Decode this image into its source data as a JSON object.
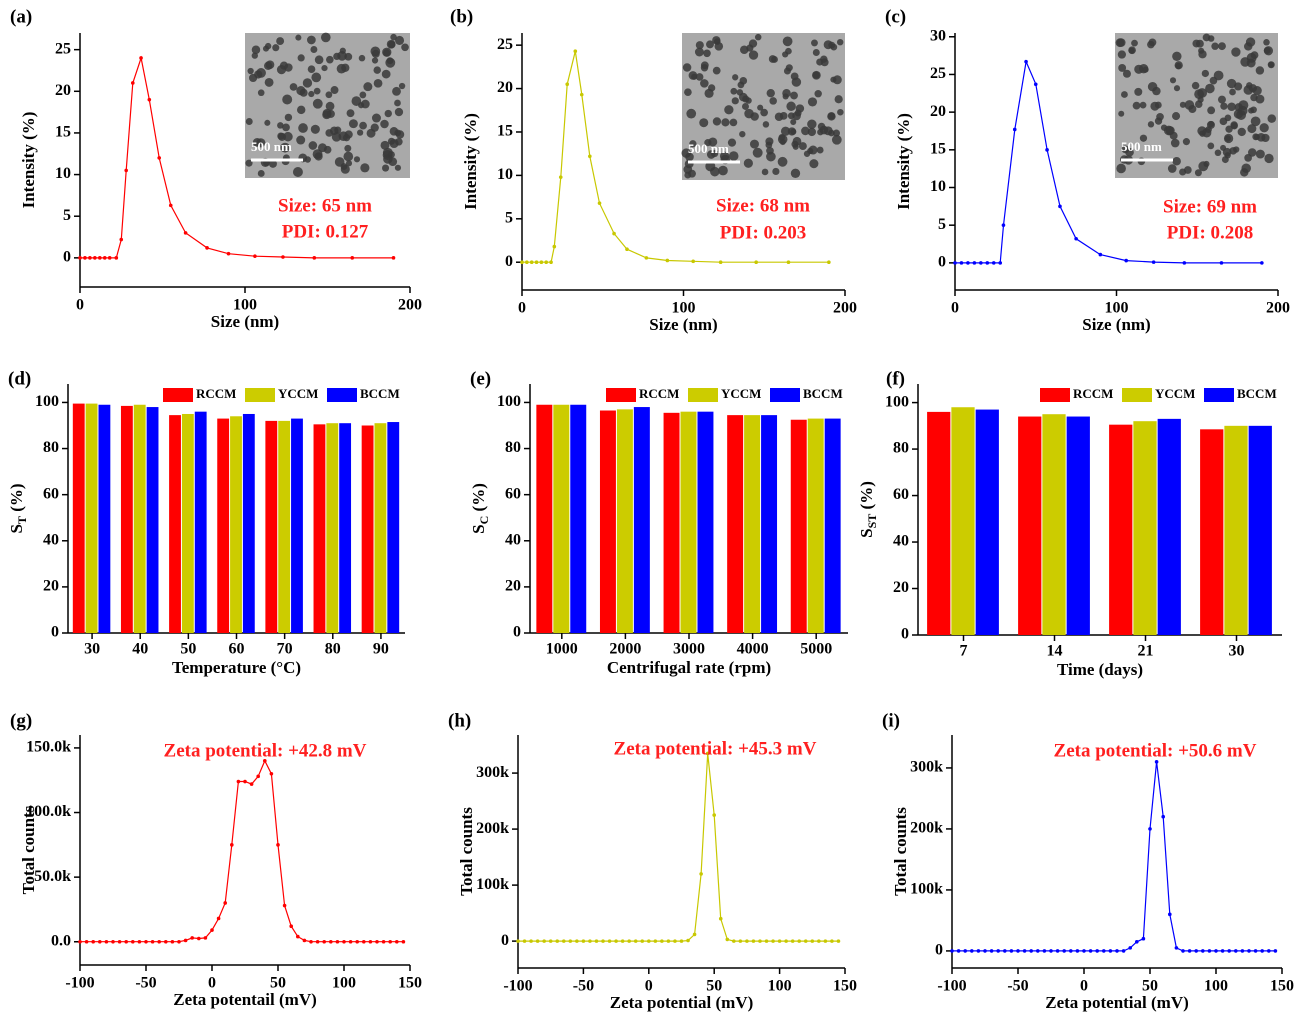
{
  "chart_data": [
    {
      "type": "line",
      "panel": "(a)",
      "xlabel": "Size (nm)",
      "ylabel": "Intensity (%)",
      "color": "#ff0000",
      "x": [
        0,
        3,
        6,
        9,
        12,
        15,
        18,
        22,
        25,
        28,
        32,
        37,
        42,
        48,
        55,
        64,
        77,
        90,
        106,
        123,
        142,
        165,
        190
      ],
      "values": [
        0,
        0,
        0,
        0,
        0,
        0,
        0,
        0,
        2.2,
        10.5,
        21,
        24,
        19,
        12,
        6.3,
        3,
        1.2,
        0.5,
        0.2,
        0.1,
        0,
        0,
        0
      ],
      "xlim": [
        0,
        200
      ],
      "xticks": [
        0,
        100,
        200
      ],
      "ylim": [
        -3.5,
        27
      ],
      "yticks": [
        0,
        5,
        10,
        15,
        20,
        25
      ],
      "annotations": [
        "Size: 65 nm",
        "PDI: 0.127"
      ],
      "inset_label": "500 nm"
    },
    {
      "type": "line",
      "panel": "(b)",
      "xlabel": "Size (nm)",
      "ylabel": "Intensity (%)",
      "color": "#c8c800",
      "x": [
        0,
        3,
        6,
        9,
        12,
        15,
        18,
        20,
        24,
        28,
        33,
        37,
        42,
        48,
        57,
        65,
        77,
        90,
        106,
        123,
        145,
        165,
        190
      ],
      "values": [
        0,
        0,
        0,
        0,
        0,
        0,
        0,
        1.8,
        9.8,
        20.5,
        24.3,
        19.3,
        12.2,
        6.8,
        3.3,
        1.5,
        0.5,
        0.2,
        0.1,
        0,
        0,
        0,
        0
      ],
      "xlim": [
        0,
        200
      ],
      "xticks": [
        0,
        100,
        200
      ],
      "ylim": [
        -3.2,
        26.4
      ],
      "yticks": [
        0,
        5,
        10,
        15,
        20,
        25
      ],
      "annotations": [
        "Size: 68 nm",
        "PDI: 0.203"
      ],
      "inset_label": "500 nm"
    },
    {
      "type": "line",
      "panel": "(c)",
      "xlabel": "Size (nm)",
      "ylabel": "Intensity (%)",
      "color": "#0000ff",
      "x": [
        0,
        4,
        8,
        12,
        16,
        20,
        24,
        28,
        30,
        37,
        44,
        50,
        57,
        65,
        75,
        90,
        106,
        123,
        142,
        165,
        190
      ],
      "values": [
        0,
        0,
        0,
        0,
        0,
        0,
        0,
        0,
        5,
        17.7,
        26.7,
        23.7,
        15,
        7.5,
        3.2,
        1.1,
        0.3,
        0.1,
        0,
        0,
        0
      ],
      "xlim": [
        0,
        200
      ],
      "xticks": [
        0,
        100,
        200
      ],
      "ylim": [
        -3.6,
        30.5
      ],
      "yticks": [
        0,
        5,
        10,
        15,
        20,
        25,
        30
      ],
      "annotations": [
        "Size: 69 nm",
        "PDI: 0.208"
      ],
      "inset_label": "500 nm"
    },
    {
      "type": "bar",
      "panel": "(d)",
      "xlabel": "Temperature (°C)",
      "ylabel": {
        "text": "S",
        "sub": "T",
        "suffix": " (%)"
      },
      "categories": [
        "30",
        "40",
        "50",
        "60",
        "70",
        "80",
        "90"
      ],
      "series": [
        {
          "name": "RCCM",
          "color": "#ff0000",
          "values": [
            99.5,
            98.5,
            94.5,
            93,
            92,
            90.5,
            90
          ]
        },
        {
          "name": "YCCM",
          "color": "#cccc00",
          "values": [
            99.5,
            99,
            95,
            94,
            92,
            91,
            91
          ]
        },
        {
          "name": "BCCM",
          "color": "#0000ff",
          "values": [
            99,
            98,
            96,
            95,
            93,
            91,
            91.5
          ]
        }
      ],
      "ylim": [
        0,
        108
      ],
      "yticks": [
        0,
        20,
        40,
        60,
        80,
        100
      ],
      "legend": "upper right"
    },
    {
      "type": "bar",
      "panel": "(e)",
      "xlabel": "Centrifugal rate (rpm)",
      "ylabel": {
        "text": "S",
        "sub": "C",
        "suffix": " (%)"
      },
      "categories": [
        "1000",
        "2000",
        "3000",
        "4000",
        "5000"
      ],
      "series": [
        {
          "name": "RCCM",
          "color": "#ff0000",
          "values": [
            99,
            96.5,
            95.5,
            94.5,
            92.5
          ]
        },
        {
          "name": "YCCM",
          "color": "#cccc00",
          "values": [
            99,
            97,
            96,
            94.5,
            93
          ]
        },
        {
          "name": "BCCM",
          "color": "#0000ff",
          "values": [
            99,
            98,
            96,
            94.5,
            93
          ]
        }
      ],
      "ylim": [
        0,
        108
      ],
      "yticks": [
        0,
        20,
        40,
        60,
        80,
        100
      ],
      "legend": "upper right"
    },
    {
      "type": "bar",
      "panel": "(f)",
      "xlabel": "Time (days)",
      "ylabel": {
        "text": "S",
        "sub": "ST",
        "suffix": " (%)"
      },
      "categories": [
        "7",
        "14",
        "21",
        "30"
      ],
      "series": [
        {
          "name": "RCCM",
          "color": "#ff0000",
          "values": [
            96,
            94,
            90.5,
            88.5
          ]
        },
        {
          "name": "YCCM",
          "color": "#cccc00",
          "values": [
            98,
            95,
            92,
            90
          ]
        },
        {
          "name": "BCCM",
          "color": "#0000ff",
          "values": [
            97,
            94,
            93,
            90
          ]
        }
      ],
      "ylim": [
        0,
        108
      ],
      "yticks": [
        0,
        20,
        40,
        60,
        80,
        100
      ],
      "legend": "upper right"
    },
    {
      "type": "line",
      "panel": "(g)",
      "xlabel": "Zeta potentail (mV)",
      "ylabel": "Total counts",
      "color": "#ff0000",
      "x": [
        -100,
        -95,
        -90,
        -85,
        -80,
        -75,
        -70,
        -65,
        -60,
        -55,
        -50,
        -45,
        -40,
        -35,
        -30,
        -25,
        -20,
        -15,
        -10,
        -5,
        0,
        5,
        10,
        15,
        20,
        25,
        30,
        35,
        40,
        45,
        50,
        55,
        60,
        65,
        70,
        75,
        80,
        85,
        90,
        95,
        100,
        105,
        110,
        115,
        120,
        125,
        130,
        135,
        140,
        145
      ],
      "values": [
        0,
        0,
        0,
        0,
        0,
        0,
        0,
        0,
        0,
        0,
        0,
        0,
        0,
        0,
        0,
        0,
        1000,
        3000,
        2500,
        3000,
        9000,
        18000,
        30000,
        75000,
        124000,
        124000,
        122000,
        128000,
        140000,
        130000,
        75000,
        28000,
        12000,
        4000,
        1000,
        0,
        0,
        0,
        0,
        0,
        0,
        0,
        0,
        0,
        0,
        0,
        0,
        0,
        0,
        0
      ],
      "xlim": [
        -100,
        150
      ],
      "xticks": [
        -100,
        -50,
        0,
        50,
        100,
        150
      ],
      "ylim": [
        -18000,
        160000
      ],
      "yticks": [
        {
          "value": 0,
          "label": "0.0"
        },
        {
          "value": 50000,
          "label": "50.0k"
        },
        {
          "value": 100000,
          "label": "100.0k"
        },
        {
          "value": 150000,
          "label": "150.0k"
        }
      ],
      "annotations": [
        "Zeta potential: +42.8 mV"
      ]
    },
    {
      "type": "line",
      "panel": "(h)",
      "xlabel": "Zeta potential (mV)",
      "ylabel": "Total counts",
      "color": "#c8c800",
      "x": [
        -100,
        -95,
        -90,
        -85,
        -80,
        -75,
        -70,
        -65,
        -60,
        -55,
        -50,
        -45,
        -40,
        -35,
        -30,
        -25,
        -20,
        -15,
        -10,
        -5,
        0,
        5,
        10,
        15,
        20,
        25,
        30,
        35,
        40,
        45,
        50,
        55,
        60,
        65,
        70,
        75,
        80,
        85,
        90,
        95,
        100,
        105,
        110,
        115,
        120,
        125,
        130,
        135,
        140,
        145
      ],
      "values": [
        0,
        0,
        0,
        0,
        0,
        0,
        0,
        0,
        0,
        0,
        0,
        0,
        0,
        0,
        0,
        0,
        0,
        0,
        0,
        0,
        0,
        0,
        0,
        0,
        0,
        0,
        1000,
        12000,
        120000,
        335000,
        225000,
        40000,
        3000,
        0,
        0,
        0,
        0,
        0,
        0,
        0,
        0,
        0,
        0,
        0,
        0,
        0,
        0,
        0,
        0,
        0
      ],
      "xlim": [
        -100,
        150
      ],
      "xticks": [
        -100,
        -50,
        0,
        50,
        100,
        150
      ],
      "ylim": [
        -48000,
        368000
      ],
      "yticks": [
        0,
        {
          "value": 100000,
          "label": "100k"
        },
        {
          "value": 200000,
          "label": "200k"
        },
        {
          "value": 300000,
          "label": "300k"
        }
      ],
      "annotations": [
        "Zeta potential: +45.3 mV"
      ]
    },
    {
      "type": "line",
      "panel": "(i)",
      "xlabel": "Zeta potential (mV)",
      "ylabel": "Total counts",
      "color": "#0000ff",
      "x": [
        -100,
        -95,
        -90,
        -85,
        -80,
        -75,
        -70,
        -65,
        -60,
        -55,
        -50,
        -45,
        -40,
        -35,
        -30,
        -25,
        -20,
        -15,
        -10,
        -5,
        0,
        5,
        10,
        15,
        20,
        25,
        30,
        35,
        40,
        45,
        50,
        55,
        60,
        65,
        70,
        75,
        80,
        85,
        90,
        95,
        100,
        105,
        110,
        115,
        120,
        125,
        130,
        135,
        140,
        145
      ],
      "values": [
        0,
        0,
        0,
        0,
        0,
        0,
        0,
        0,
        0,
        0,
        0,
        0,
        0,
        0,
        0,
        0,
        0,
        0,
        0,
        0,
        0,
        0,
        0,
        0,
        0,
        0,
        0,
        5000,
        15000,
        20000,
        200000,
        310000,
        220000,
        60000,
        5000,
        0,
        0,
        0,
        0,
        0,
        0,
        0,
        0,
        0,
        0,
        0,
        0,
        0,
        0,
        0
      ],
      "xlim": [
        -100,
        150
      ],
      "xticks": [
        -100,
        -50,
        0,
        50,
        100,
        150
      ],
      "ylim": [
        -28000,
        354000
      ],
      "yticks": [
        0,
        {
          "value": 100000,
          "label": "100k"
        },
        {
          "value": 200000,
          "label": "200k"
        },
        {
          "value": 300000,
          "label": "300k"
        }
      ],
      "annotations": [
        "Zeta potential: +50.6 mV"
      ]
    }
  ]
}
